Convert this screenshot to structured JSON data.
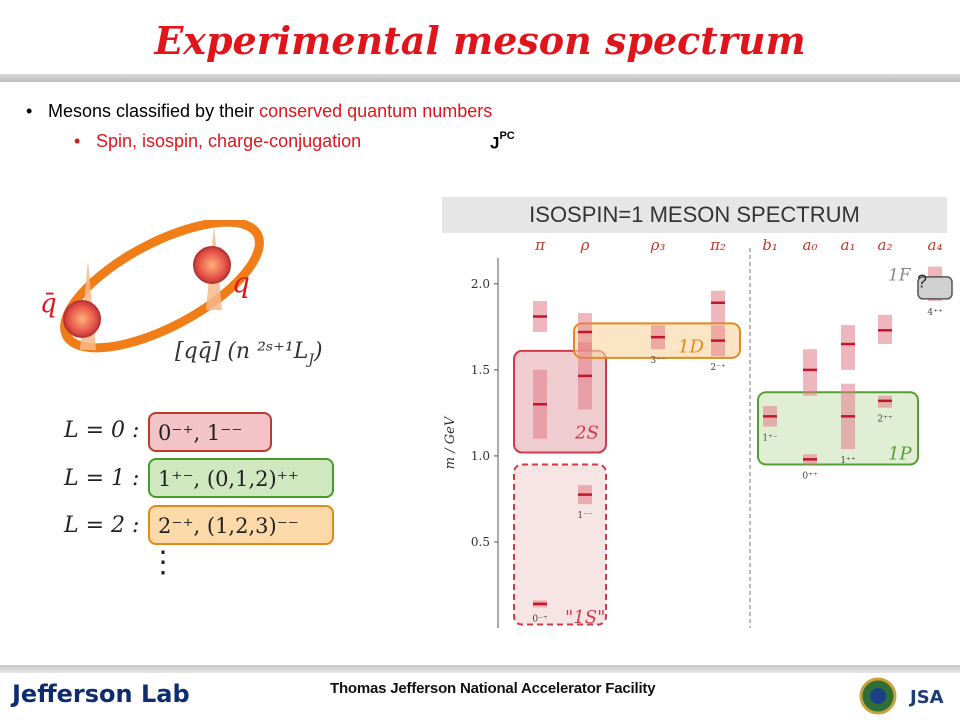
{
  "title": "Experimental meson spectrum",
  "bullets": [
    {
      "text_plain": "Mesons classified by their ",
      "text_red": "conserved quantum numbers"
    },
    {
      "text_red": "Spin, isospin, charge-conjugation"
    }
  ],
  "jpc": {
    "base": "J",
    "sup": "PC"
  },
  "spectrum_banner": "ISOSPIN=1 MESON SPECTRUM",
  "diagram": {
    "qbar_label": "q̄",
    "q_label": "q",
    "formula": "[qq̄] (n ²ˢ⁺¹L",
    "formula_sub": "J",
    "formula_end": ")"
  },
  "L_table": [
    {
      "label": "L = 0  :",
      "content": "0⁻⁺, 1⁻⁻",
      "color": "#f2c4c8",
      "border": "#c0392b"
    },
    {
      "label": "L = 1  :",
      "content": "1⁺⁻, (0,1,2)⁺⁺",
      "color": "#cfe8c0",
      "border": "#4a9a2a"
    },
    {
      "label": "L = 2  :",
      "content": "2⁻⁺, (1,2,3)⁻⁻",
      "color": "#fcd9a8",
      "border": "#e08a1a"
    }
  ],
  "L_table_more": "⋮",
  "chart_data": {
    "type": "scatter",
    "ylabel": "m / GeV",
    "ylim": [
      0,
      2.15
    ],
    "yticks": [
      0.5,
      1.0,
      1.5,
      2.0
    ],
    "ytick_labels": [
      "0.5",
      "1.0",
      "1.5",
      "2.0"
    ],
    "columns": [
      {
        "label": "π",
        "states": [
          {
            "mass": 0.14,
            "hi": 0.16,
            "lo": 0.12
          },
          {
            "mass": 1.3,
            "hi": 1.5,
            "lo": 1.1
          },
          {
            "mass": 1.81,
            "hi": 1.9,
            "lo": 1.72
          }
        ],
        "jpc": "0⁻⁺"
      },
      {
        "label": "ρ",
        "states": [
          {
            "mass": 0.775,
            "hi": 0.83,
            "lo": 0.72
          },
          {
            "mass": 1.465,
            "hi": 1.66,
            "lo": 1.27
          },
          {
            "mass": 1.72,
            "hi": 1.83,
            "lo": 1.61
          }
        ],
        "jpc": "1⁻⁻"
      },
      {
        "label": "ρ₃",
        "states": [
          {
            "mass": 1.69,
            "hi": 1.76,
            "lo": 1.62
          }
        ],
        "jpc": "3⁻⁻"
      },
      {
        "label": "π₂",
        "states": [
          {
            "mass": 1.67,
            "hi": 1.76,
            "lo": 1.58
          },
          {
            "mass": 1.89,
            "hi": 1.96,
            "lo": 1.77
          }
        ],
        "jpc": "2⁻⁺"
      },
      {
        "label": "b₁",
        "states": [
          {
            "mass": 1.23,
            "hi": 1.29,
            "lo": 1.17
          }
        ],
        "jpc": "1⁺⁻"
      },
      {
        "label": "a₀",
        "states": [
          {
            "mass": 0.98,
            "hi": 1.01,
            "lo": 0.95
          },
          {
            "mass": 1.5,
            "hi": 1.62,
            "lo": 1.35
          }
        ],
        "jpc": "0⁺⁺"
      },
      {
        "label": "a₁",
        "states": [
          {
            "mass": 1.23,
            "hi": 1.42,
            "lo": 1.04
          },
          {
            "mass": 1.65,
            "hi": 1.76,
            "lo": 1.5
          }
        ],
        "jpc": "1⁺⁺"
      },
      {
        "label": "a₂",
        "states": [
          {
            "mass": 1.32,
            "hi": 1.35,
            "lo": 1.28
          },
          {
            "mass": 1.73,
            "hi": 1.82,
            "lo": 1.65
          }
        ],
        "jpc": "2⁺⁺"
      },
      {
        "label": "a₄",
        "states": [
          {
            "mass": 2.0,
            "hi": 2.1,
            "lo": 1.9
          }
        ],
        "jpc": "4⁺⁺"
      }
    ],
    "groups": [
      {
        "label": "\"1S\"",
        "color": "#e7b1b5",
        "border": "#d23a4a",
        "dashed": true
      },
      {
        "label": "2S",
        "color": "#e7b1b5",
        "border": "#d23a4a",
        "dashed": false
      },
      {
        "label": "1D",
        "color": "#fbd7a4",
        "border": "#e28a1c",
        "dashed": false
      },
      {
        "label": "1P",
        "color": "#cfe6bd",
        "border": "#53a030",
        "dashed": false
      }
    ],
    "annotations": [
      "1F",
      "?"
    ]
  },
  "footer": {
    "lab": "Jefferson Lab",
    "facility": "Thomas Jefferson National Accelerator Facility",
    "right_logo": "JSA"
  }
}
